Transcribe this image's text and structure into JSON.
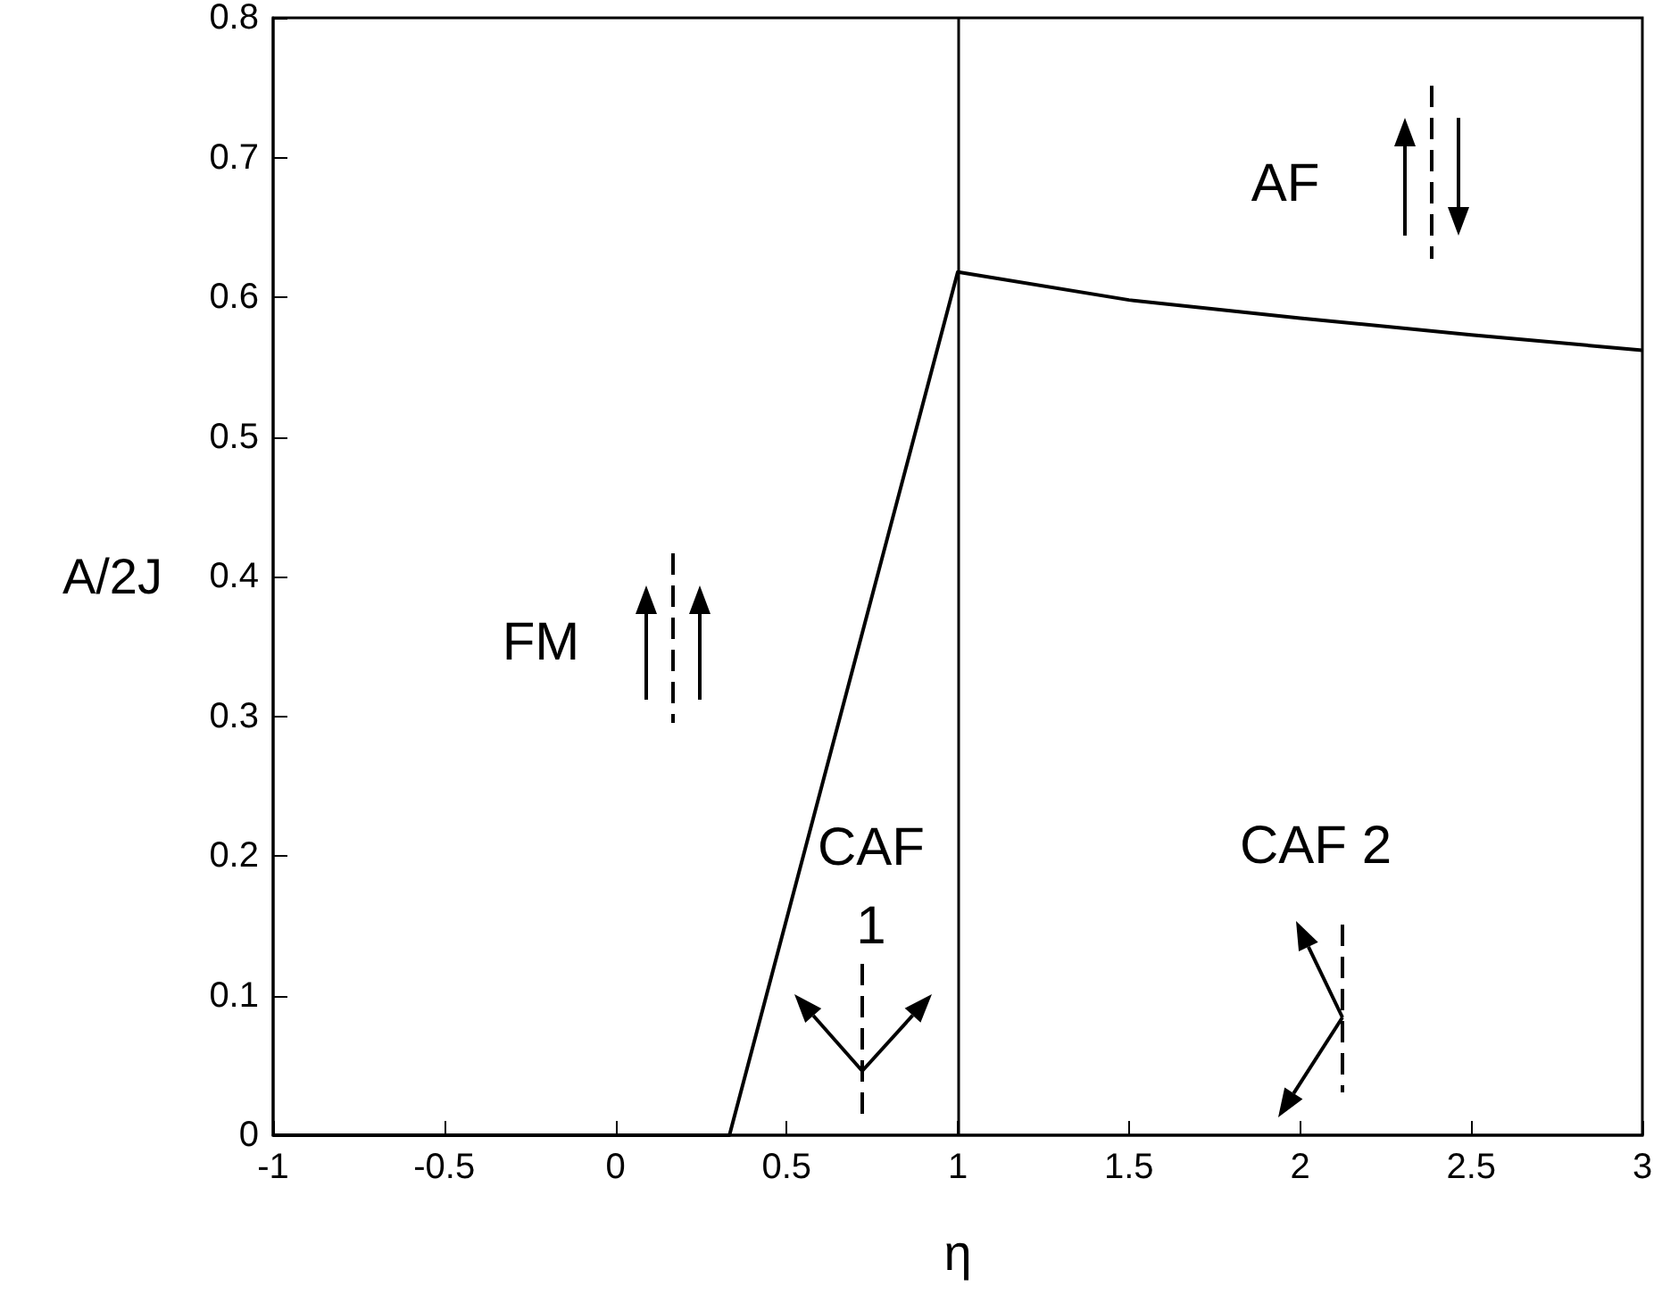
{
  "chart_data": {
    "type": "line",
    "xlabel": "η",
    "ylabel": "A/2J",
    "x": [
      -1,
      0.333,
      1,
      1.5,
      2,
      2.5,
      3
    ],
    "series": [
      {
        "color": "#000000",
        "values": [
          0,
          0,
          0.618,
          0.598,
          0.585,
          0.573,
          0.562
        ]
      }
    ],
    "xlim": [
      -1,
      3
    ],
    "xticks": [
      -1,
      -0.5,
      0,
      0.5,
      1,
      1.5,
      2,
      2.5,
      3
    ],
    "ylim": [
      0,
      0.8
    ],
    "yticks": [
      0,
      0.1,
      0.2,
      0.3,
      0.4,
      0.5,
      0.6,
      0.7,
      0.8
    ],
    "ref_lines": [
      {
        "axis": "x",
        "value": 1,
        "color": "#000000"
      }
    ],
    "annotations": [
      "FM",
      "AF",
      "CAF\n1",
      "CAF 2"
    ],
    "grid": false,
    "marker": "none",
    "line_style": "solid"
  }
}
